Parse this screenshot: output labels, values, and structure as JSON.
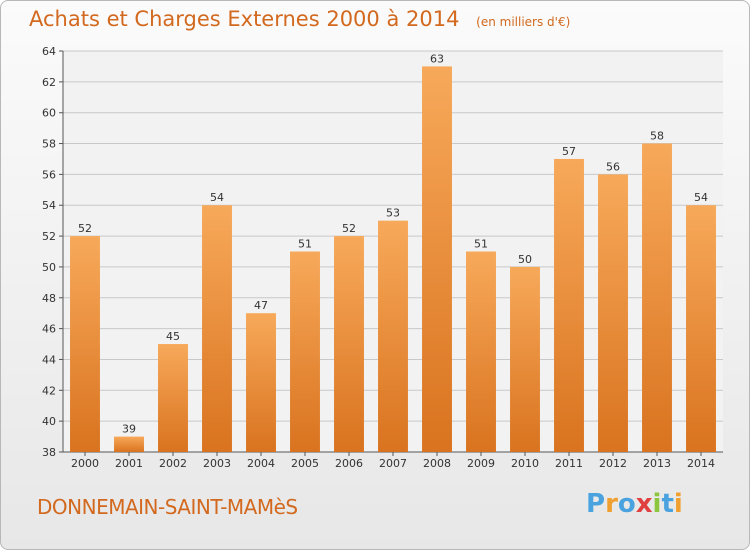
{
  "header": {
    "title": "Achats et Charges Externes 2000 à 2014",
    "unit": "(en milliers d'€)"
  },
  "footer": {
    "location": "DONNEMAIN-SAINT-MAMèS",
    "logo_text": "Proxiti",
    "logo_letters": [
      {
        "ch": "P",
        "color": "#4aa3df"
      },
      {
        "ch": "r",
        "color": "#f0a030"
      },
      {
        "ch": "o",
        "color": "#4aa3df"
      },
      {
        "ch": "x",
        "color": "#e04040"
      },
      {
        "ch": "i",
        "color": "#8cc63f"
      },
      {
        "ch": "t",
        "color": "#4aa3df"
      },
      {
        "ch": "i",
        "color": "#f0a030"
      }
    ]
  },
  "colors": {
    "bar_light": "#f7a95a",
    "bar_dark": "#d9731f",
    "title": "#d2691e",
    "grid": "#c8c8c8"
  },
  "chart_data": {
    "type": "bar",
    "title": "Achats et Charges Externes 2000 à 2014",
    "xlabel": "",
    "ylabel": "",
    "categories": [
      "2000",
      "2001",
      "2002",
      "2003",
      "2004",
      "2005",
      "2006",
      "2007",
      "2008",
      "2009",
      "2010",
      "2011",
      "2012",
      "2013",
      "2014"
    ],
    "values": [
      52,
      39,
      45,
      54,
      47,
      51,
      52,
      53,
      63,
      51,
      50,
      57,
      56,
      58,
      54
    ],
    "ylim": [
      38,
      64
    ],
    "yticks": [
      38,
      40,
      42,
      44,
      46,
      48,
      50,
      52,
      54,
      56,
      58,
      60,
      62,
      64
    ],
    "grid": true
  }
}
